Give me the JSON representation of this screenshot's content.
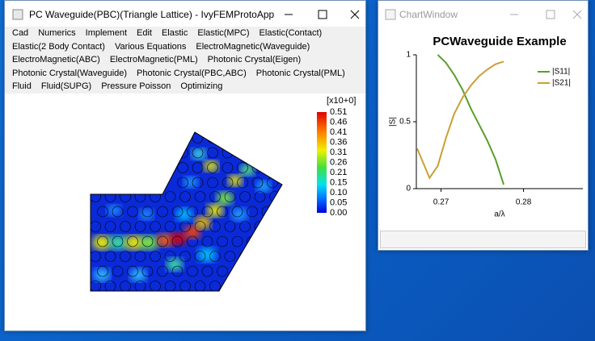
{
  "main_window": {
    "title": "PC Waveguide(PBC)(Triangle Lattice) - IvyFEMProtoApp",
    "menu": [
      [
        "Cad",
        "Numerics",
        "Implement",
        "Edit",
        "Elastic",
        "Elastic(MPC)",
        "Elastic(Contact)"
      ],
      [
        "Elastic(2 Body Contact)",
        "Various Equations",
        "ElectroMagnetic(Waveguide)"
      ],
      [
        "ElectroMagnetic(ABC)",
        "ElectroMagnetic(PML)",
        "Photonic Crystal(Eigen)"
      ],
      [
        "Photonic Crystal(Waveguide)",
        "Photonic Crystal(PBC,ABC)",
        "Photonic Crystal(PML)"
      ],
      [
        "Fluid",
        "Fluid(SUPG)",
        "Pressure Poisson",
        "Optimizing"
      ]
    ],
    "colorbar": {
      "unit": "[x10+0]",
      "labels": [
        "0.51",
        "0.46",
        "0.41",
        "0.36",
        "0.31",
        "0.26",
        "0.21",
        "0.15",
        "0.10",
        "0.05",
        "0.00"
      ]
    }
  },
  "chart_window": {
    "title": "ChartWindow"
  },
  "chart_data": {
    "type": "line",
    "title": "PCWaveguide Example",
    "x_label": "a/λ",
    "y_label": "|S|",
    "x": [
      0.2671,
      0.2686,
      0.2696,
      0.2706,
      0.2716,
      0.2726,
      0.2736,
      0.2746,
      0.2756,
      0.2766,
      0.2776
    ],
    "series": [
      {
        "name": "|S11|",
        "color": "#5a9e2c",
        "values": [
          null,
          null,
          1.0,
          0.94,
          0.85,
          0.74,
          0.6,
          0.48,
          0.36,
          0.22,
          0.03
        ]
      },
      {
        "name": "|S21|",
        "color": "#c9a032",
        "values": [
          0.3,
          0.08,
          0.17,
          0.38,
          0.56,
          0.68,
          0.77,
          0.84,
          0.89,
          0.93,
          0.95
        ]
      }
    ],
    "xlim": [
      0.267,
      0.2872
    ],
    "xticks": [
      0.27,
      0.28
    ],
    "ylim": [
      0,
      1
    ],
    "yticks": [
      0,
      0.5,
      1
    ],
    "legend": "upper-right"
  }
}
